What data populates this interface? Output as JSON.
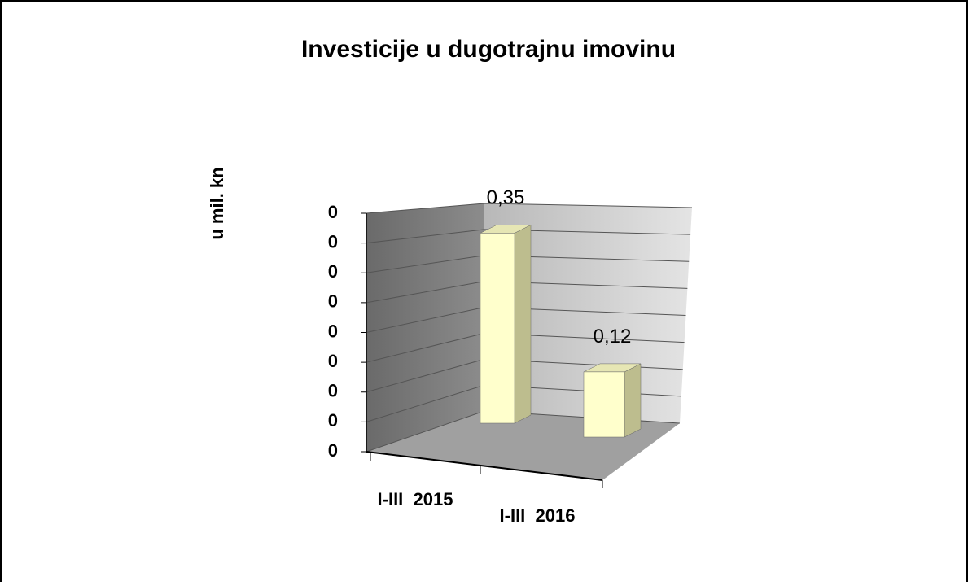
{
  "chart_data": {
    "type": "bar3d",
    "title": "Investicije u dugotrajnu imovinu",
    "y_label": "u mil. kn",
    "categories": [
      "I-III  2015",
      "I-III  2016"
    ],
    "values": [
      0.35,
      0.12
    ],
    "value_labels": [
      "0,35",
      "0,12"
    ],
    "color": "#ffffcc",
    "ylim": [
      0,
      0.4
    ],
    "yticks": [
      0,
      {
        "value": 0.05,
        "label": "0"
      },
      {
        "value": 0.1,
        "label": "0"
      },
      {
        "value": 0.15,
        "label": "0"
      },
      {
        "value": 0.2,
        "label": "0"
      },
      {
        "value": 0.25,
        "label": "0"
      },
      {
        "value": 0.3,
        "label": "0"
      },
      {
        "value": 0.35,
        "label": "0"
      },
      {
        "value": 0.4,
        "label": "0"
      }
    ],
    "grid": true
  }
}
